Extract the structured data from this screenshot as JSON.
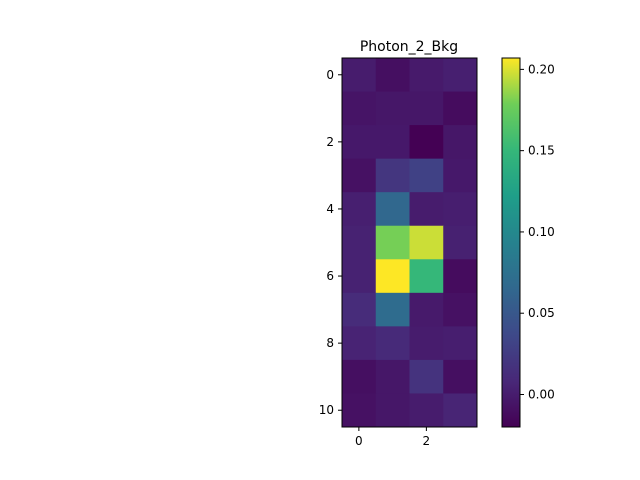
{
  "chart_data": {
    "type": "heatmap",
    "title": "Photon_2_Bkg",
    "xlabel": "",
    "ylabel": "",
    "colormap": "viridis",
    "origin": "upper",
    "n_rows": 11,
    "n_cols": 4,
    "x_ticks": [
      0,
      2
    ],
    "x_tick_labels": [
      "0",
      "2"
    ],
    "y_ticks": [
      0,
      2,
      4,
      6,
      8,
      10
    ],
    "y_tick_labels": [
      "0",
      "2",
      "4",
      "6",
      "8",
      "10"
    ],
    "color_range": [
      -0.02,
      0.207
    ],
    "colorbar_ticks": [
      0.0,
      0.05,
      0.1,
      0.15,
      0.2
    ],
    "colorbar_tick_labels": [
      "0.00",
      "0.05",
      "0.10",
      "0.15",
      "0.20"
    ],
    "values": [
      [
        0.0,
        -0.01,
        -0.002,
        0.002
      ],
      [
        -0.006,
        -0.004,
        -0.004,
        -0.012
      ],
      [
        -0.003,
        -0.003,
        -0.02,
        -0.004
      ],
      [
        -0.008,
        0.02,
        0.03,
        -0.003
      ],
      [
        0.002,
        0.065,
        0.0,
        0.001
      ],
      [
        0.004,
        0.18,
        0.197,
        0.003
      ],
      [
        0.004,
        0.207,
        0.15,
        -0.012
      ],
      [
        0.012,
        0.07,
        -0.002,
        -0.008
      ],
      [
        0.005,
        0.01,
        0.0,
        0.001
      ],
      [
        -0.01,
        -0.004,
        0.018,
        -0.01
      ],
      [
        -0.008,
        -0.004,
        0.0,
        0.006
      ]
    ]
  }
}
